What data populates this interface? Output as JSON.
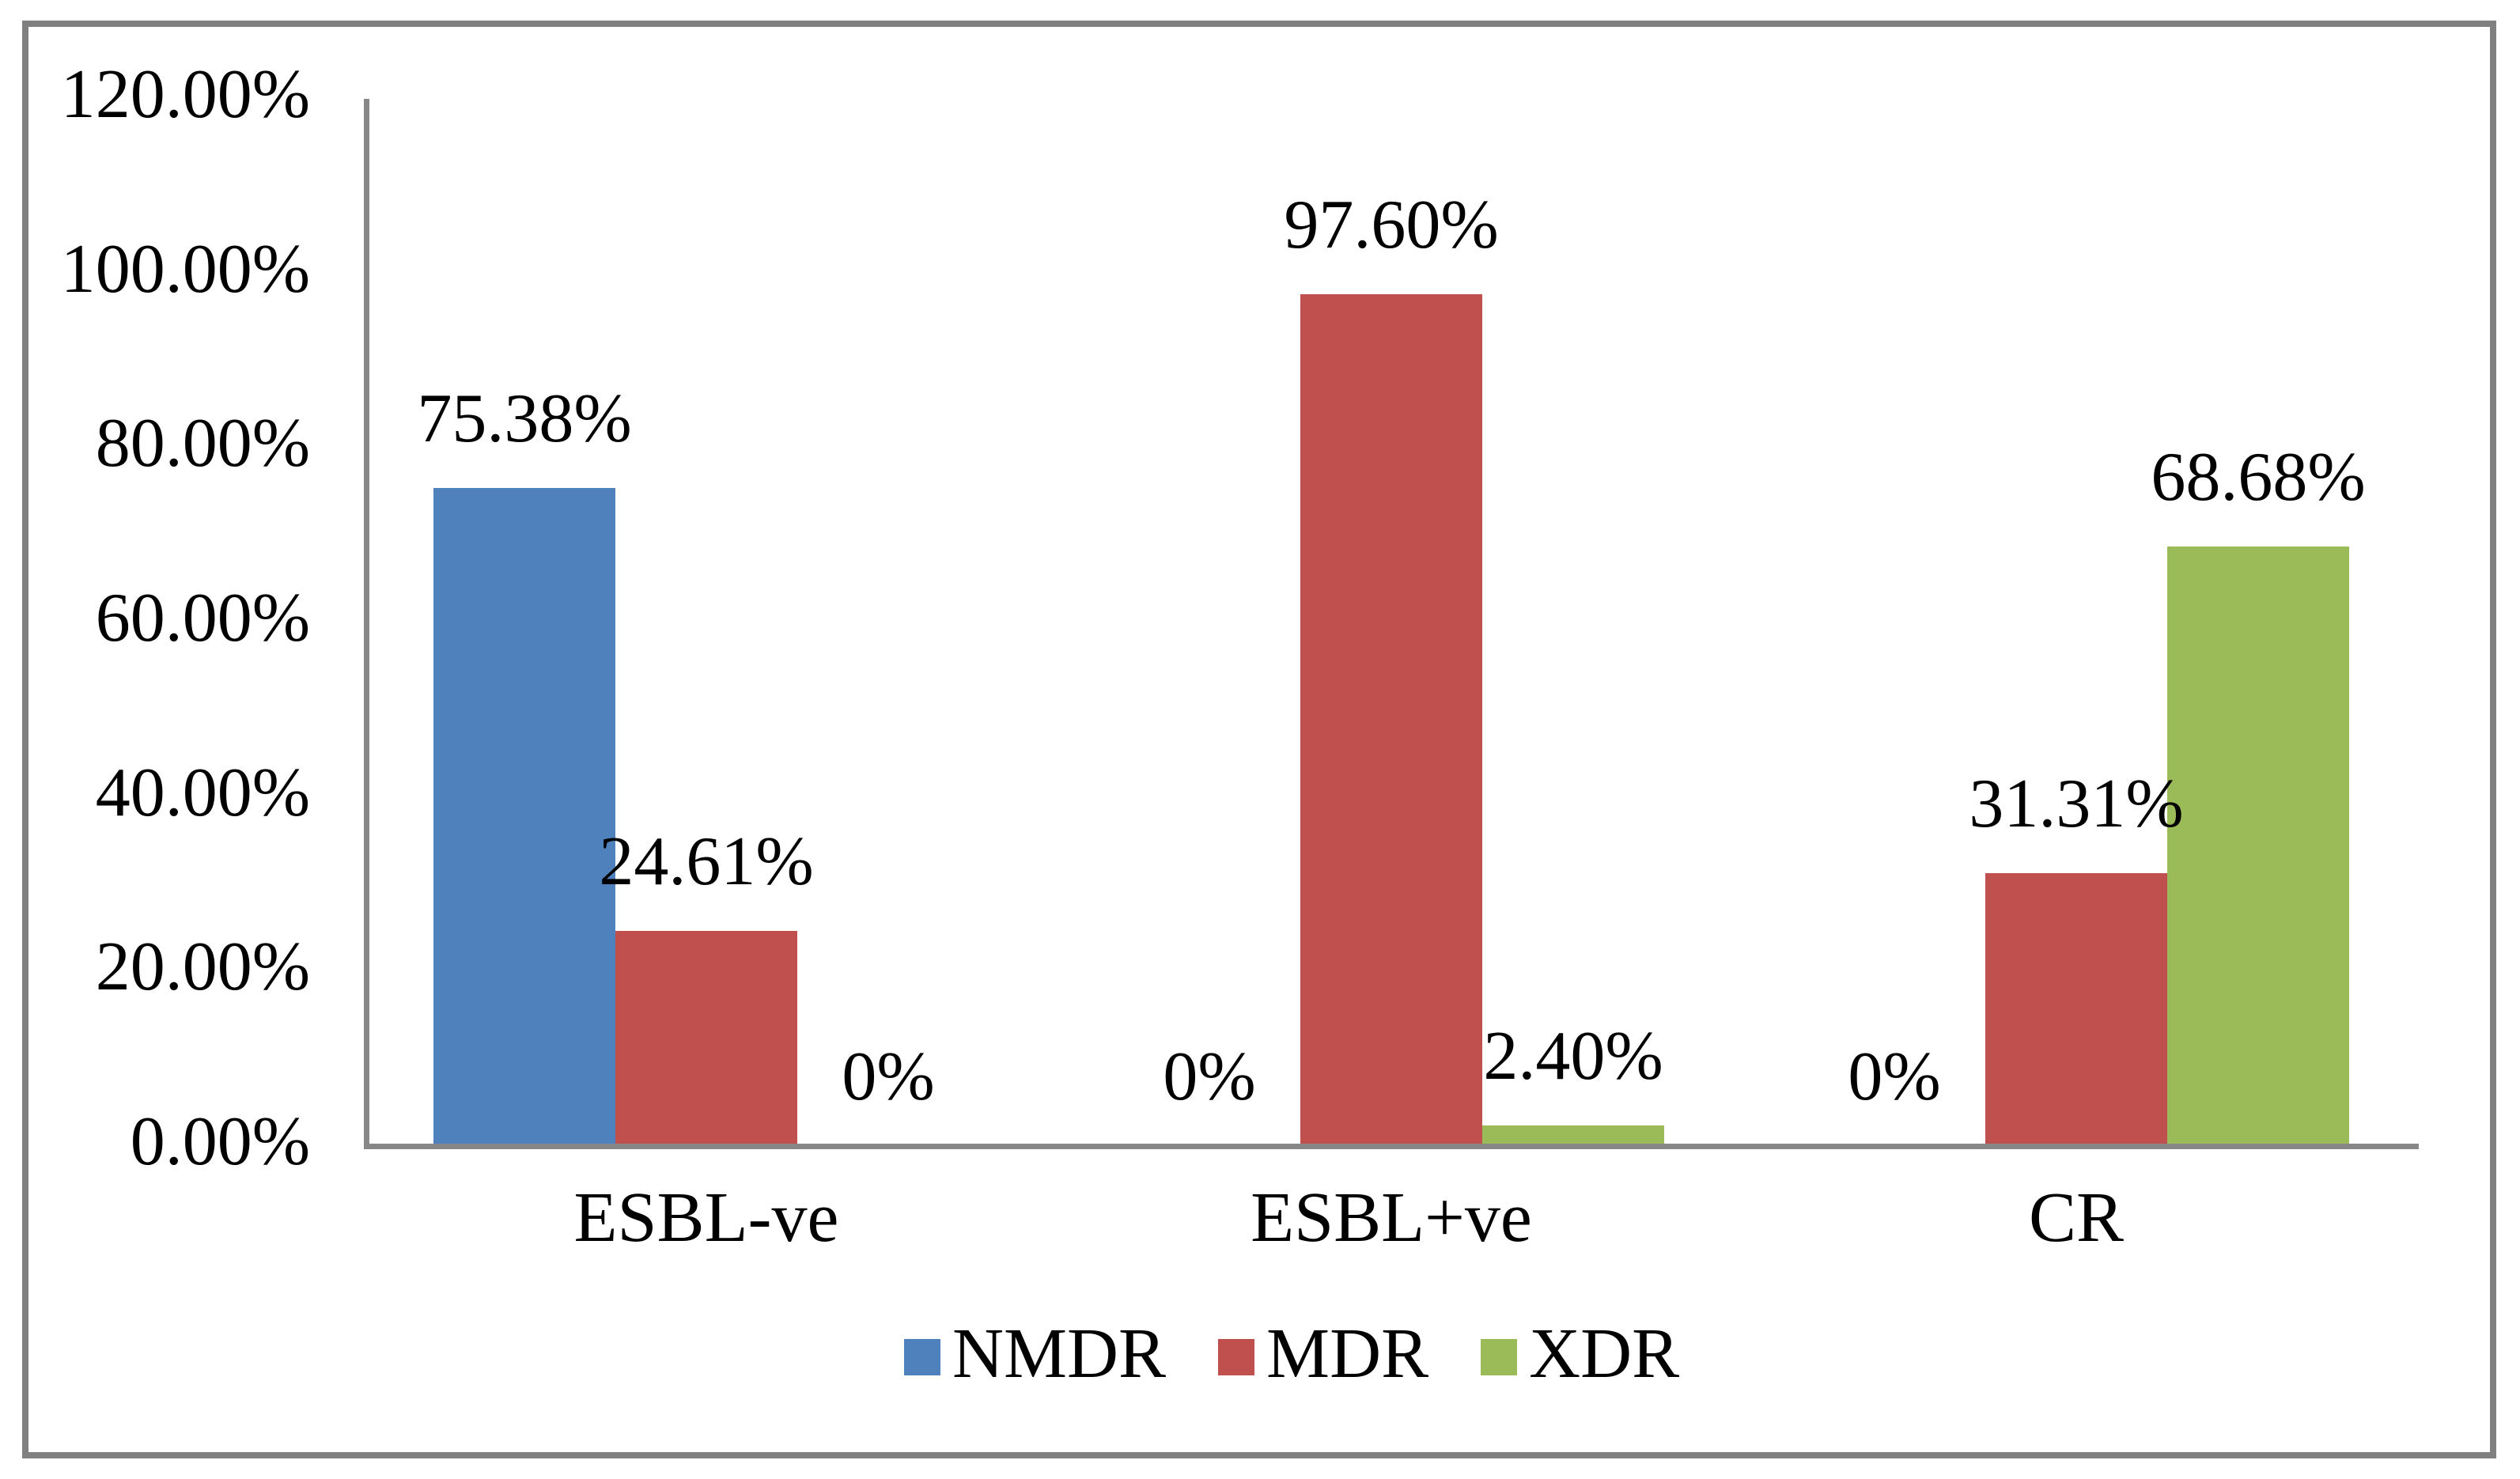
{
  "chart_data": {
    "type": "bar",
    "categories": [
      "ESBL-ve",
      "ESBL+ve",
      "CR"
    ],
    "series": [
      {
        "name": "NMDR",
        "color": "#4F81BD",
        "values": [
          75.38,
          0,
          0
        ],
        "labels": [
          "75.38%",
          "0%",
          "0%"
        ]
      },
      {
        "name": "MDR",
        "color": "#C0504D",
        "values": [
          24.61,
          97.6,
          31.31
        ],
        "labels": [
          "24.61%",
          "97.60%",
          "31.31%"
        ]
      },
      {
        "name": "XDR",
        "color": "#9BBB59",
        "values": [
          0,
          2.4,
          68.68
        ],
        "labels": [
          "0%",
          "2.40%",
          "68.68%"
        ]
      }
    ],
    "y_axis": {
      "min": 0,
      "max": 120,
      "step": 20,
      "tick_labels": [
        "0.00%",
        "20.00%",
        "40.00%",
        "60.00%",
        "80.00%",
        "100.00%",
        "120.00%"
      ]
    },
    "legend": {
      "position": "bottom",
      "entries": [
        "NMDR",
        "MDR",
        "XDR"
      ]
    },
    "grid": false,
    "title": "",
    "xlabel": "",
    "ylabel": ""
  },
  "colors": {
    "background": "#FFFFFF",
    "frame": "#808080",
    "axis": "#878787",
    "text": "#000000"
  }
}
